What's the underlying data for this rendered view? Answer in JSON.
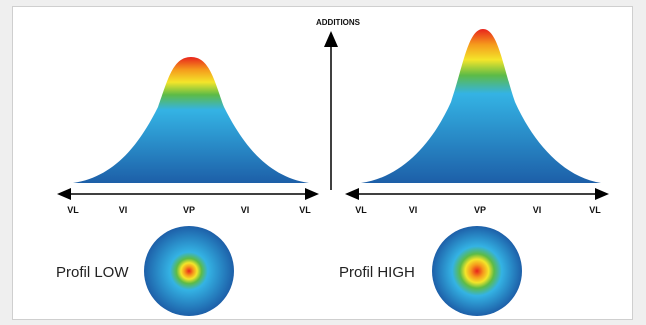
{
  "vertical_axis": {
    "label": "ADDITIONS"
  },
  "panels": [
    {
      "id": "low",
      "ticks": [
        "VL",
        "VI",
        "VP",
        "VI",
        "VL"
      ],
      "profile_label": "Profil LOW"
    },
    {
      "id": "high",
      "ticks": [
        "VL",
        "VI",
        "VP",
        "VI",
        "VL"
      ],
      "profile_label": "Profil HIGH"
    }
  ],
  "colors": {
    "peak": "#e8231c",
    "orange": "#f59a1c",
    "yellow": "#f4e52a",
    "green": "#5dbb46",
    "cyan": "#34b3e4",
    "blue": "#1d6ab2",
    "axis": "#000000"
  }
}
